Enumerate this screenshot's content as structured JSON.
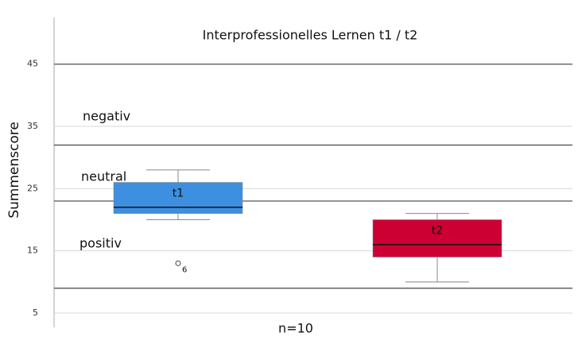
{
  "chart_data": {
    "type": "box",
    "title": "Interprofessionelles Lernen t1 / t2",
    "y_label": "Summenscore",
    "x_label": "n=10",
    "ylim": [
      2.7,
      52.5
    ],
    "yticks": [
      5,
      15,
      25,
      35,
      45
    ],
    "grid": true,
    "reference_lines": [
      45,
      32,
      23,
      9
    ],
    "annotations": [
      "negativ",
      "neutral",
      "positiv"
    ],
    "series": [
      {
        "name": "t1",
        "color": "#3d8fe0",
        "whisker_low": 20,
        "q1": 21,
        "median": 22,
        "q3": 26,
        "whisker_high": 28,
        "outliers": [
          {
            "value": 13,
            "label": "6"
          }
        ]
      },
      {
        "name": "t2",
        "color": "#cc0033",
        "whisker_low": 10,
        "q1": 14,
        "median": 16,
        "q3": 20,
        "whisker_high": 21,
        "outliers": []
      }
    ]
  }
}
